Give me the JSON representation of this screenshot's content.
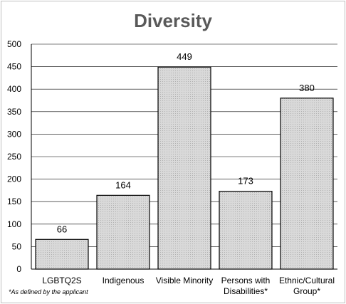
{
  "chart_data": {
    "type": "bar",
    "title": "Diversity",
    "categories": [
      [
        "LGBTQ2S"
      ],
      [
        "Indigenous"
      ],
      [
        "Visible Minority"
      ],
      [
        "Persons with",
        "Disabilities*"
      ],
      [
        "Ethnic/Cultural",
        "Group*"
      ]
    ],
    "values": [
      66,
      164,
      449,
      173,
      380
    ],
    "data_labels": [
      "66",
      "164",
      "449",
      "173",
      "380"
    ],
    "ylim": [
      0,
      500
    ],
    "yticks": [
      0,
      50,
      100,
      150,
      200,
      250,
      300,
      350,
      400,
      450,
      500
    ],
    "grid": true,
    "xlabel": "",
    "ylabel": "",
    "bar_fill": "#d9d9d9",
    "bar_edge": "#000000",
    "footnote": "*As defined by the applicant"
  }
}
